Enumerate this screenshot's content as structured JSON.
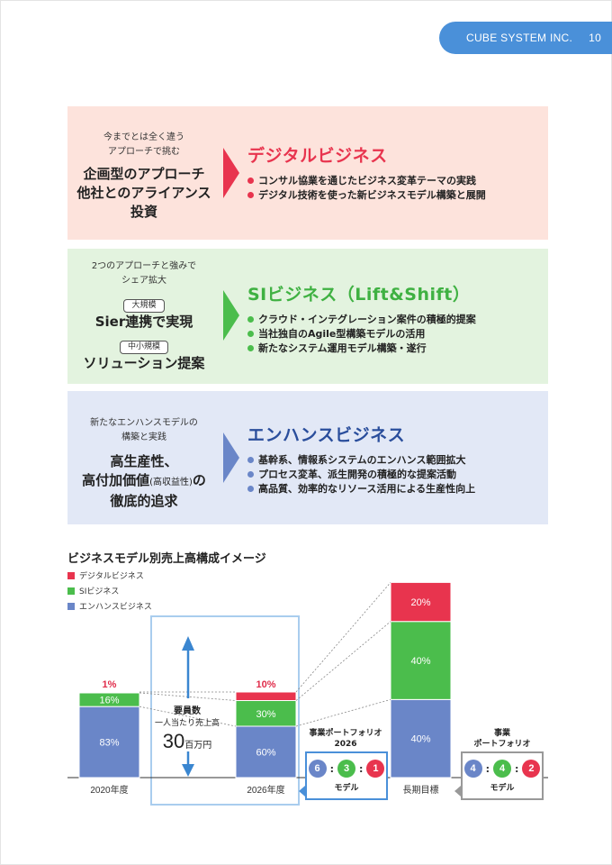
{
  "header": {
    "company": "CUBE SYSTEM INC.",
    "page": "10"
  },
  "colors": {
    "digital": "#e8344e",
    "si": "#4bbd4c",
    "enhance": "#6a86c8",
    "header": "#4a90d9"
  },
  "panels": [
    {
      "subtitle": [
        "今までとは全く違う",
        "アプローチで挑む"
      ],
      "lead": [
        "企画型のアプローチ",
        "他社とのアライアンス",
        "投資"
      ],
      "title": "デジタルビジネス",
      "bullets": [
        "コンサル協業を通じたビジネス変革テーマの実践",
        "デジタル技術を使った新ビジネスモデル構築と展開"
      ]
    },
    {
      "subtitle": [
        "2つのアプローチと強みで",
        "シェア拡大"
      ],
      "tag1": "大規模",
      "lead1": "Sier連携で実現",
      "tag2": "中小規模",
      "lead2": "ソリューション提案",
      "title": "SIビジネス（Lift&Shift）",
      "bullets": [
        "クラウド・インテグレーション案件の積極的提案",
        "当社独自のAgile型構築モデルの活用",
        "新たなシステム運用モデル構築・遂行"
      ]
    },
    {
      "subtitle": [
        "新たなエンハンスモデルの",
        "構築と実践"
      ],
      "lead_a": "高生産性、",
      "lead_b1": "高付加価値",
      "lead_b2": "(高収益性)",
      "lead_b3": "の",
      "lead_c": "徹底的追求",
      "title": "エンハンスビジネス",
      "bullets": [
        "基幹系、情報系システムのエンハンス範囲拡大",
        "プロセス変革、派生開発の積極的な提案活動",
        "高品質、効率的なリソース活用による生産性向上"
      ]
    }
  ],
  "chart_data": {
    "type": "bar",
    "title": "ビジネスモデル別売上高構成イメージ",
    "categories": [
      "2020年度",
      "2026年度",
      "長期目標"
    ],
    "series": [
      {
        "name": "エンハンスビジネス",
        "values": [
          83,
          60,
          40
        ],
        "labels": [
          "83%",
          "60%",
          "40%"
        ]
      },
      {
        "name": "SIビジネス",
        "values": [
          16,
          30,
          40
        ],
        "labels": [
          "16%",
          "30%",
          "40%"
        ]
      },
      {
        "name": "デジタルビジネス",
        "values": [
          1,
          10,
          20
        ],
        "labels": [
          "1%",
          "10%",
          "20%"
        ]
      }
    ],
    "stacked": true,
    "ylim": [
      0,
      100
    ],
    "relative_totals": [
      1,
      1,
      2.28
    ],
    "legend": [
      "デジタルビジネス",
      "SIビジネス",
      "エンハンスビジネス"
    ],
    "legend_placement": "top-left"
  },
  "staff": {
    "line1": "要員数",
    "line2": "一人当たり売上高",
    "value": "30",
    "unit": "百万円"
  },
  "portfolio_2026": {
    "title1": "事業ポートフォリオ",
    "title2": "2026",
    "ratio": [
      "6",
      "3",
      "1"
    ],
    "label": "モデル"
  },
  "portfolio_long": {
    "title1": "事業",
    "title2": "ポートフォリオ",
    "ratio": [
      "4",
      "4",
      "2"
    ],
    "label": "モデル"
  }
}
